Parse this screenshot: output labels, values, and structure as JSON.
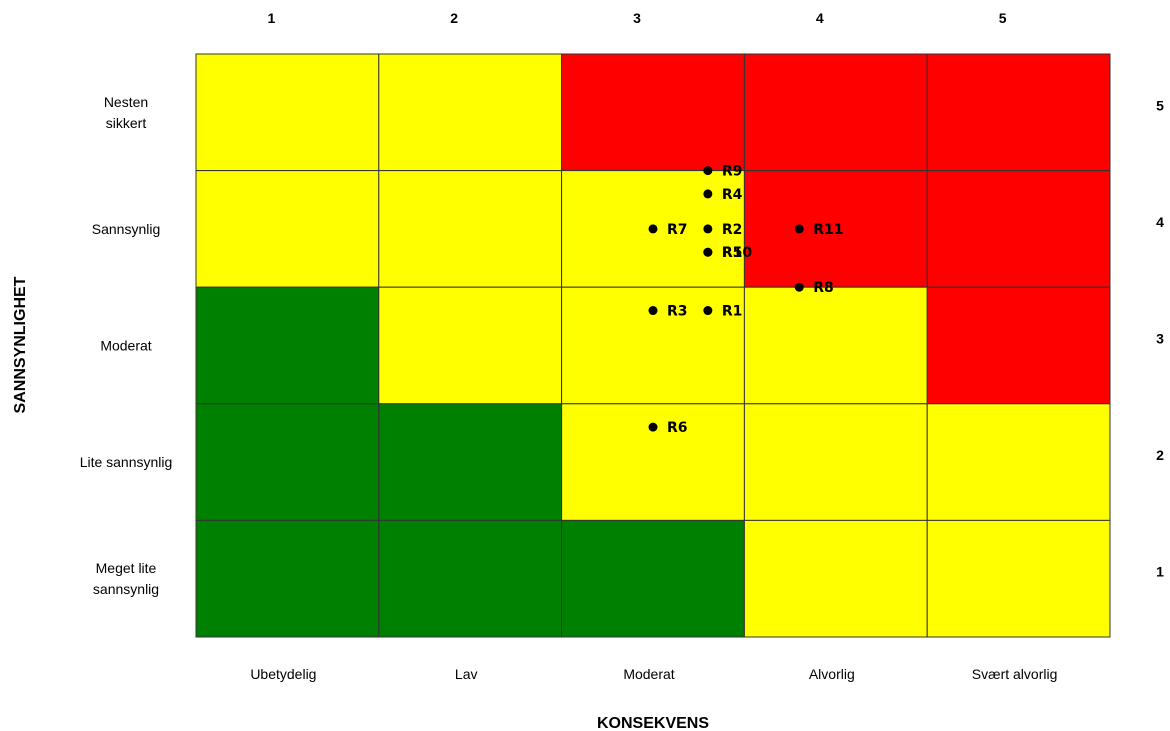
{
  "chart_data": {
    "type": "heatmap",
    "title": "",
    "xlabel": "KONSEKVENS",
    "ylabel": "SANNSYNLIGHET",
    "x_numbers": [
      "1",
      "2",
      "3",
      "4",
      "5"
    ],
    "x_categories": [
      "Ubetydelig",
      "Lav",
      "Moderat",
      "Alvorlig",
      "Svært alvorlig"
    ],
    "y_numbers": [
      "5",
      "4",
      "3",
      "2",
      "1"
    ],
    "y_categories": [
      [
        "Nesten",
        "sikkert"
      ],
      [
        "Sannsynlig"
      ],
      [
        "Moderat"
      ],
      [
        "Lite sannsynlig"
      ],
      [
        "Meget lite",
        "sannsynlig"
      ]
    ],
    "colors": {
      "green": "#008000",
      "yellow": "#ffff00",
      "red": "#ff0000",
      "grid": "#333333"
    },
    "grid": [
      [
        "yellow",
        "yellow",
        "red",
        "red",
        "red"
      ],
      [
        "yellow",
        "yellow",
        "yellow",
        "red",
        "red"
      ],
      [
        "green",
        "yellow",
        "yellow",
        "yellow",
        "red"
      ],
      [
        "green",
        "green",
        "yellow",
        "yellow",
        "yellow"
      ],
      [
        "green",
        "green",
        "green",
        "yellow",
        "yellow"
      ]
    ],
    "points": [
      {
        "label": "R9",
        "consequence": 3.3,
        "probability": 4.5
      },
      {
        "label": "R4",
        "consequence": 3.3,
        "probability": 4.3
      },
      {
        "label": "R7",
        "consequence": 3.0,
        "probability": 4.0
      },
      {
        "label": "R2",
        "consequence": 3.3,
        "probability": 4.0
      },
      {
        "label": "R5",
        "consequence": 3.3,
        "probability": 3.8
      },
      {
        "label": "R10",
        "consequence": 3.3,
        "probability": 3.8
      },
      {
        "label": "R11",
        "consequence": 3.8,
        "probability": 4.0
      },
      {
        "label": "R8",
        "consequence": 3.8,
        "probability": 3.5
      },
      {
        "label": "R3",
        "consequence": 3.0,
        "probability": 3.3
      },
      {
        "label": "R1",
        "consequence": 3.3,
        "probability": 3.3
      },
      {
        "label": "R6",
        "consequence": 3.0,
        "probability": 2.3
      }
    ]
  }
}
